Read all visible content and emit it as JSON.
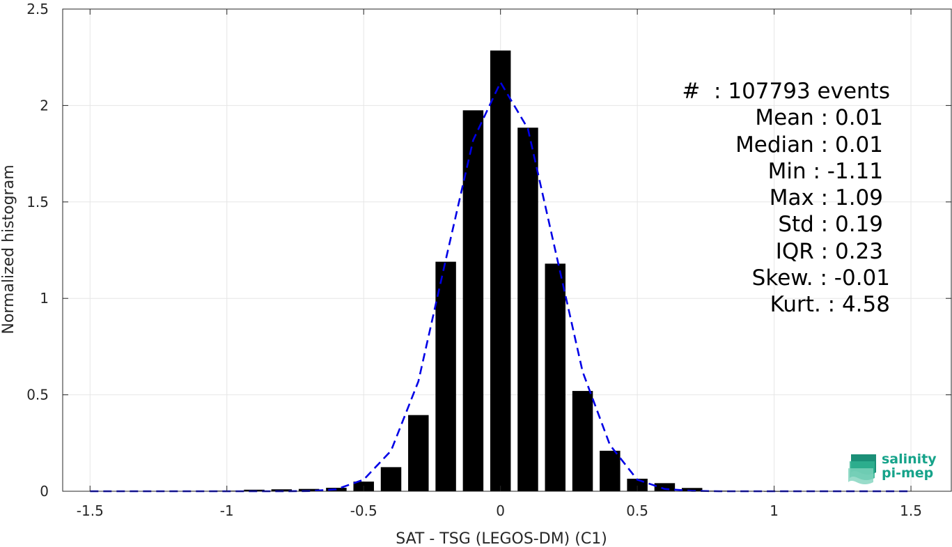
{
  "chart_data": {
    "type": "bar",
    "xlabel": "SAT - TSG (LEGOS-DM) (C1)",
    "ylabel": "Normalized histogram",
    "xlim": [
      -1.6,
      1.65
    ],
    "ylim": [
      0,
      2.5
    ],
    "grid": true,
    "xticks": [
      -1.5,
      -1,
      -0.5,
      0,
      0.5,
      1,
      1.5
    ],
    "xtick_labels": [
      "-1.5",
      "-1",
      "-0.5",
      "0",
      "0.5",
      "1",
      "1.5"
    ],
    "yticks": [
      0,
      0.5,
      1,
      1.5,
      2,
      2.5
    ],
    "ytick_labels": [
      "0",
      "0.5",
      "1",
      "1.5",
      "2",
      "2.5"
    ],
    "bar_width": 0.075,
    "bars": {
      "x": [
        -1.5,
        -1.4,
        -1.3,
        -1.2,
        -1.1,
        -1.0,
        -0.9,
        -0.8,
        -0.7,
        -0.6,
        -0.5,
        -0.4,
        -0.3,
        -0.2,
        -0.1,
        0.0,
        0.1,
        0.2,
        0.3,
        0.4,
        0.5,
        0.6,
        0.7,
        0.8,
        0.9,
        1.0,
        1.1,
        1.2,
        1.3,
        1.4,
        1.5
      ],
      "values": [
        0,
        0,
        0,
        0,
        0.002,
        0.003,
        0.008,
        0.01,
        0.012,
        0.018,
        0.05,
        0.125,
        0.395,
        1.19,
        1.975,
        2.285,
        1.885,
        1.18,
        0.52,
        0.21,
        0.065,
        0.042,
        0.017,
        0.003,
        0.002,
        0.001,
        0,
        0,
        0,
        0,
        0
      ]
    },
    "fit": {
      "style": "dashed",
      "color": "#0000e6",
      "x": [
        -1.5,
        -1.4,
        -1.3,
        -1.2,
        -1.1,
        -1.0,
        -0.9,
        -0.8,
        -0.7,
        -0.6,
        -0.5,
        -0.4,
        -0.3,
        -0.2,
        -0.1,
        0.0,
        0.1,
        0.2,
        0.3,
        0.4,
        0.5,
        0.6,
        0.7,
        0.8,
        0.9,
        1.0,
        1.1,
        1.2,
        1.3,
        1.4,
        1.5
      ],
      "y": [
        0,
        0,
        0,
        0,
        0,
        0,
        0,
        0,
        0.001,
        0.01,
        0.06,
        0.21,
        0.57,
        1.2,
        1.82,
        2.12,
        1.88,
        1.25,
        0.62,
        0.24,
        0.06,
        0.012,
        0.002,
        0,
        0,
        0,
        0,
        0,
        0,
        0,
        0
      ]
    },
    "bar_color": "#000000"
  },
  "stats": {
    "count": "#  : 107793 events",
    "mean": "Mean : 0.01",
    "median": "Median : 0.01",
    "min": "Min : -1.11",
    "max": "Max : 1.09",
    "std": "Std : 0.19",
    "iqr": "IQR : 0.23",
    "skew": "Skew. : -0.01",
    "kurt": "Kurt. : 4.58"
  },
  "logo": {
    "line1": "salinity",
    "line2": "pi-mep",
    "color": "#16a38a"
  }
}
